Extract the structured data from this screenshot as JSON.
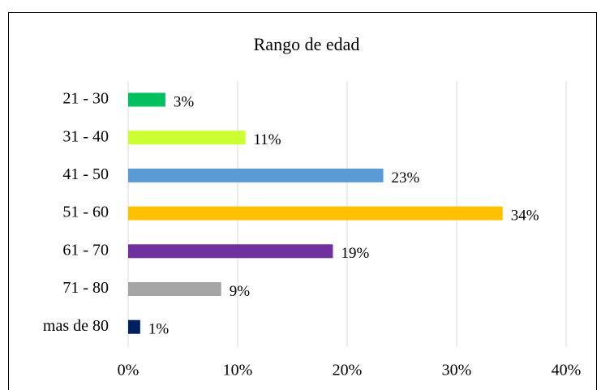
{
  "chart_data": {
    "type": "bar",
    "orientation": "horizontal",
    "title": "Rango de edad",
    "categories": [
      "21 - 30",
      "31 - 40",
      "41 - 50",
      "51 - 60",
      "61 - 70",
      "71 - 80",
      "mas de 80"
    ],
    "values": [
      3.4,
      10.7,
      23.3,
      34.2,
      18.7,
      8.5,
      1.1
    ],
    "value_labels": [
      "3%",
      "11%",
      "23%",
      "34%",
      "19%",
      "9%",
      "1%"
    ],
    "colors": [
      "#00c060",
      "#ccff33",
      "#5b9bd5",
      "#ffc000",
      "#7030a0",
      "#a5a5a5",
      "#002060"
    ],
    "xlim": [
      0,
      40
    ],
    "xticks": [
      {
        "value": 0,
        "label": "0%"
      },
      {
        "value": 10,
        "label": "10%"
      },
      {
        "value": 20,
        "label": "20%"
      },
      {
        "value": 30,
        "label": "30%"
      },
      {
        "value": 40,
        "label": "40%"
      }
    ],
    "grid": true
  }
}
